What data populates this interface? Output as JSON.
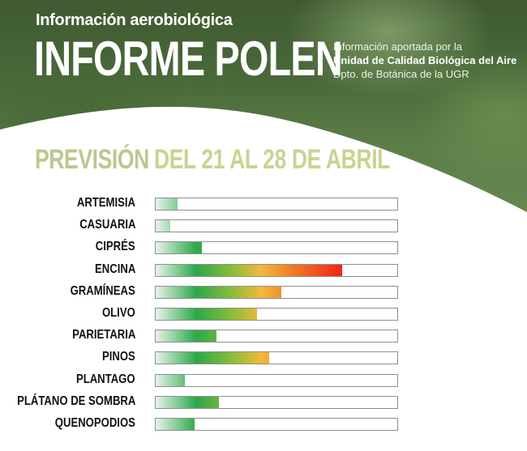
{
  "header": {
    "subtitle": "Información aerobiológica",
    "title": "INFORME POLEN",
    "info_line1": "Información aportada por la",
    "info_line2": "Unidad de Calidad Biológica del Aire",
    "info_line3": "Dpto. de Botánica de la UGR"
  },
  "forecast": {
    "label": "PREVISIÓN",
    "range": "DEL 21 AL 28 DE ABRIL"
  },
  "colors": {
    "low": "#e6f4ea",
    "moderate": "#2ca84a",
    "high": "#f2b93b",
    "very_high": "#f2231c"
  },
  "pollen": [
    {
      "name": "ARTEMISIA",
      "level": 0.09
    },
    {
      "name": "CASUARIA",
      "level": 0.06
    },
    {
      "name": "CIPRÉS",
      "level": 0.19
    },
    {
      "name": "ENCINA",
      "level": 0.77
    },
    {
      "name": "GRAMÍNEAS",
      "level": 0.52
    },
    {
      "name": "OLIVO",
      "level": 0.42
    },
    {
      "name": "PARIETARIA",
      "level": 0.25
    },
    {
      "name": "PINOS",
      "level": 0.47
    },
    {
      "name": "PLANTAGO",
      "level": 0.12
    },
    {
      "name": "PLÁTANO DE SOMBRA",
      "level": 0.26
    },
    {
      "name": "QUENOPODIOS",
      "level": 0.16
    }
  ]
}
